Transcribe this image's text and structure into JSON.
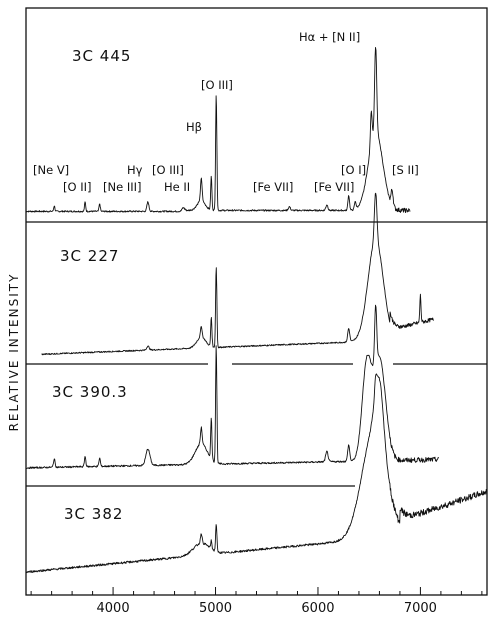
{
  "chart_data": {
    "type": "line",
    "title": "",
    "xlabel": "",
    "ylabel": "RELATIVE INTENSITY",
    "xlim": [
      3150,
      7650
    ],
    "x_ticks": [
      "4000",
      "5000",
      "6000",
      "7000"
    ],
    "grid": false,
    "legend": "none",
    "panels": [
      {
        "label": "3C 445",
        "x_range": [
          3150,
          6900
        ],
        "baseline": 0.06,
        "lines": [
          {
            "name": "Hα + [N II]",
            "x": 6563,
            "peak": 1.0
          },
          {
            "name": "[O III]",
            "x": 5007,
            "peak": 0.62
          },
          {
            "name": "Hβ",
            "x": 4861,
            "peak": 0.2
          },
          {
            "name": "[O I]",
            "x": 6300,
            "peak": 0.12
          },
          {
            "name": "[S II]",
            "x": 6724,
            "peak": 0.15
          },
          {
            "name": "[Ne V]",
            "x": 3426,
            "peak": 0.03
          },
          {
            "name": "[O II]",
            "x": 3727,
            "peak": 0.05
          },
          {
            "name": "[Ne III]",
            "x": 3869,
            "peak": 0.04
          },
          {
            "name": "Hγ",
            "x": 4340,
            "peak": 0.06
          },
          {
            "name": "[O III]",
            "x": 4363,
            "peak": 0.03
          },
          {
            "name": "He II",
            "x": 4686,
            "peak": 0.05
          },
          {
            "name": "[Fe VII]",
            "x": 5721,
            "peak": 0.02
          },
          {
            "name": "[Fe VII]",
            "x": 6087,
            "peak": 0.03
          }
        ]
      },
      {
        "label": "3C 227",
        "x_range": [
          3300,
          7130
        ],
        "baseline": 0.05
      },
      {
        "label": "3C 390.3",
        "x_range": [
          3150,
          7180
        ],
        "baseline": 0.07
      },
      {
        "label": "3C 382",
        "x_range": [
          3150,
          7650
        ],
        "baseline": 0.05
      }
    ]
  },
  "line_labels": {
    "ha_nii": "Hα + [N II]",
    "oiii_5007": "[O III]",
    "hb": "Hβ",
    "nev": "[Ne V]",
    "oii": "[O II]",
    "neiii": "[Ne III]",
    "hg": "Hγ",
    "oiii_4363": "[O III]",
    "heii": "He II",
    "fevii_a": "[Fe VII]",
    "fevii_b": "[Fe VII]",
    "oi": "[O I]",
    "sii": "[S II]"
  }
}
